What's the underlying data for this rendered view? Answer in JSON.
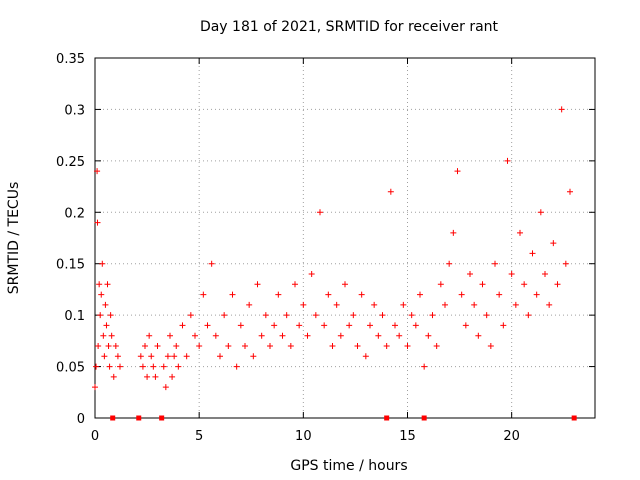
{
  "chart_data": {
    "type": "scatter",
    "title": "Day 181 of 2021, SRMTID for receiver rant",
    "xlabel": "GPS time / hours",
    "ylabel": "SRMTID / TECUs",
    "xlim": [
      0,
      24
    ],
    "ylim": [
      0,
      0.35
    ],
    "grid": true,
    "marker": "+",
    "color": "#ff0000",
    "x_ticks": [
      0,
      5,
      10,
      15,
      20
    ],
    "x_tick_labels": [
      "0",
      "5",
      "10",
      "15",
      "20"
    ],
    "y_ticks": [
      0,
      0.05,
      0.1,
      0.15,
      0.2,
      0.25,
      0.3,
      0.35
    ],
    "y_tick_labels": [
      "0",
      "0.05",
      "0.1",
      "0.15",
      "0.2",
      "0.25",
      "0.3",
      "0.35"
    ],
    "zero_markers_x": [
      0.85,
      2.1,
      3.2,
      14,
      15.8,
      23
    ],
    "series": [
      {
        "name": "SRMTID",
        "x": [
          0.0,
          0.05,
          0.1,
          0.12,
          0.15,
          0.2,
          0.25,
          0.3,
          0.35,
          0.4,
          0.45,
          0.5,
          0.55,
          0.6,
          0.65,
          0.7,
          0.75,
          0.8,
          0.9,
          1.0,
          1.1,
          1.2,
          2.2,
          2.3,
          2.4,
          2.5,
          2.6,
          2.7,
          2.8,
          2.9,
          3.0,
          3.3,
          3.4,
          3.5,
          3.6,
          3.7,
          3.8,
          3.9,
          4.0,
          4.2,
          4.4,
          4.6,
          4.8,
          5.0,
          5.2,
          5.4,
          5.6,
          5.8,
          6.0,
          6.2,
          6.4,
          6.6,
          6.8,
          7.0,
          7.2,
          7.4,
          7.6,
          7.8,
          8.0,
          8.2,
          8.4,
          8.6,
          8.8,
          9.0,
          9.2,
          9.4,
          9.6,
          9.8,
          10.0,
          10.2,
          10.4,
          10.6,
          10.8,
          11.0,
          11.2,
          11.4,
          11.6,
          11.8,
          12.0,
          12.2,
          12.4,
          12.6,
          12.8,
          13.0,
          13.2,
          13.4,
          13.6,
          13.8,
          14.0,
          14.2,
          14.4,
          14.6,
          14.8,
          15.0,
          15.2,
          15.4,
          15.6,
          15.8,
          16.0,
          16.2,
          16.4,
          16.6,
          16.8,
          17.0,
          17.2,
          17.4,
          17.6,
          17.8,
          18.0,
          18.2,
          18.4,
          18.6,
          18.8,
          19.0,
          19.2,
          19.4,
          19.6,
          19.8,
          20.0,
          20.2,
          20.4,
          20.6,
          20.8,
          21.0,
          21.2,
          21.4,
          21.6,
          21.8,
          22.0,
          22.2,
          22.4,
          22.6,
          22.8
        ],
        "y": [
          0.03,
          0.05,
          0.24,
          0.19,
          0.07,
          0.13,
          0.1,
          0.12,
          0.15,
          0.08,
          0.06,
          0.11,
          0.09,
          0.13,
          0.07,
          0.05,
          0.1,
          0.08,
          0.04,
          0.07,
          0.06,
          0.05,
          0.06,
          0.05,
          0.07,
          0.04,
          0.08,
          0.06,
          0.05,
          0.04,
          0.07,
          0.05,
          0.03,
          0.06,
          0.08,
          0.04,
          0.06,
          0.07,
          0.05,
          0.09,
          0.06,
          0.1,
          0.08,
          0.07,
          0.12,
          0.09,
          0.15,
          0.08,
          0.06,
          0.1,
          0.07,
          0.12,
          0.05,
          0.09,
          0.07,
          0.11,
          0.06,
          0.13,
          0.08,
          0.1,
          0.07,
          0.09,
          0.12,
          0.08,
          0.1,
          0.07,
          0.13,
          0.09,
          0.11,
          0.08,
          0.14,
          0.1,
          0.2,
          0.09,
          0.12,
          0.07,
          0.11,
          0.08,
          0.13,
          0.09,
          0.1,
          0.07,
          0.12,
          0.06,
          0.09,
          0.11,
          0.08,
          0.1,
          0.07,
          0.22,
          0.09,
          0.08,
          0.11,
          0.07,
          0.1,
          0.09,
          0.12,
          0.05,
          0.08,
          0.1,
          0.07,
          0.13,
          0.11,
          0.15,
          0.18,
          0.24,
          0.12,
          0.09,
          0.14,
          0.11,
          0.08,
          0.13,
          0.1,
          0.07,
          0.15,
          0.12,
          0.09,
          0.25,
          0.14,
          0.11,
          0.18,
          0.13,
          0.1,
          0.16,
          0.12,
          0.2,
          0.14,
          0.11,
          0.17,
          0.13,
          0.3,
          0.15,
          0.22
        ]
      }
    ]
  }
}
